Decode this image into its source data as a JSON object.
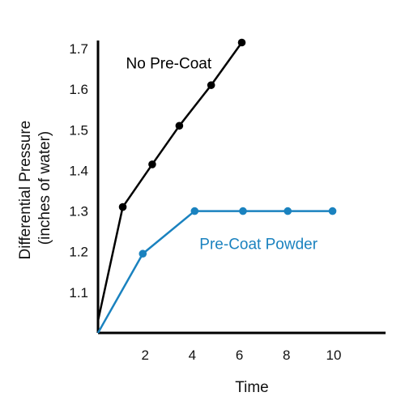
{
  "chart_data": {
    "type": "line",
    "title": "",
    "xlabel": "Time",
    "ylabel_line1": "Differential Pressure",
    "ylabel_line2": "(inches of water)",
    "xlim": [
      0,
      12.2
    ],
    "ylim": [
      1.0,
      1.72
    ],
    "x_ticks": [
      2,
      4,
      6,
      8,
      10
    ],
    "y_ticks": [
      1.1,
      1.2,
      1.3,
      1.4,
      1.5,
      1.6,
      1.7
    ],
    "grid": false,
    "series": [
      {
        "name": "No Pre-Coat",
        "color": "#000000",
        "points": [
          {
            "x": 0,
            "y": 1.03
          },
          {
            "x": 1.05,
            "y": 1.31
          },
          {
            "x": 2.3,
            "y": 1.415
          },
          {
            "x": 3.45,
            "y": 1.51
          },
          {
            "x": 4.8,
            "y": 1.61
          },
          {
            "x": 6.1,
            "y": 1.715
          }
        ]
      },
      {
        "name": "Pre-Coat Powder",
        "color": "#1a82bf",
        "points": [
          {
            "x": 0,
            "y": 1.0
          },
          {
            "x": 1.9,
            "y": 1.195
          },
          {
            "x": 4.1,
            "y": 1.3
          },
          {
            "x": 6.15,
            "y": 1.3
          },
          {
            "x": 8.05,
            "y": 1.3
          },
          {
            "x": 9.95,
            "y": 1.3
          }
        ]
      }
    ]
  }
}
